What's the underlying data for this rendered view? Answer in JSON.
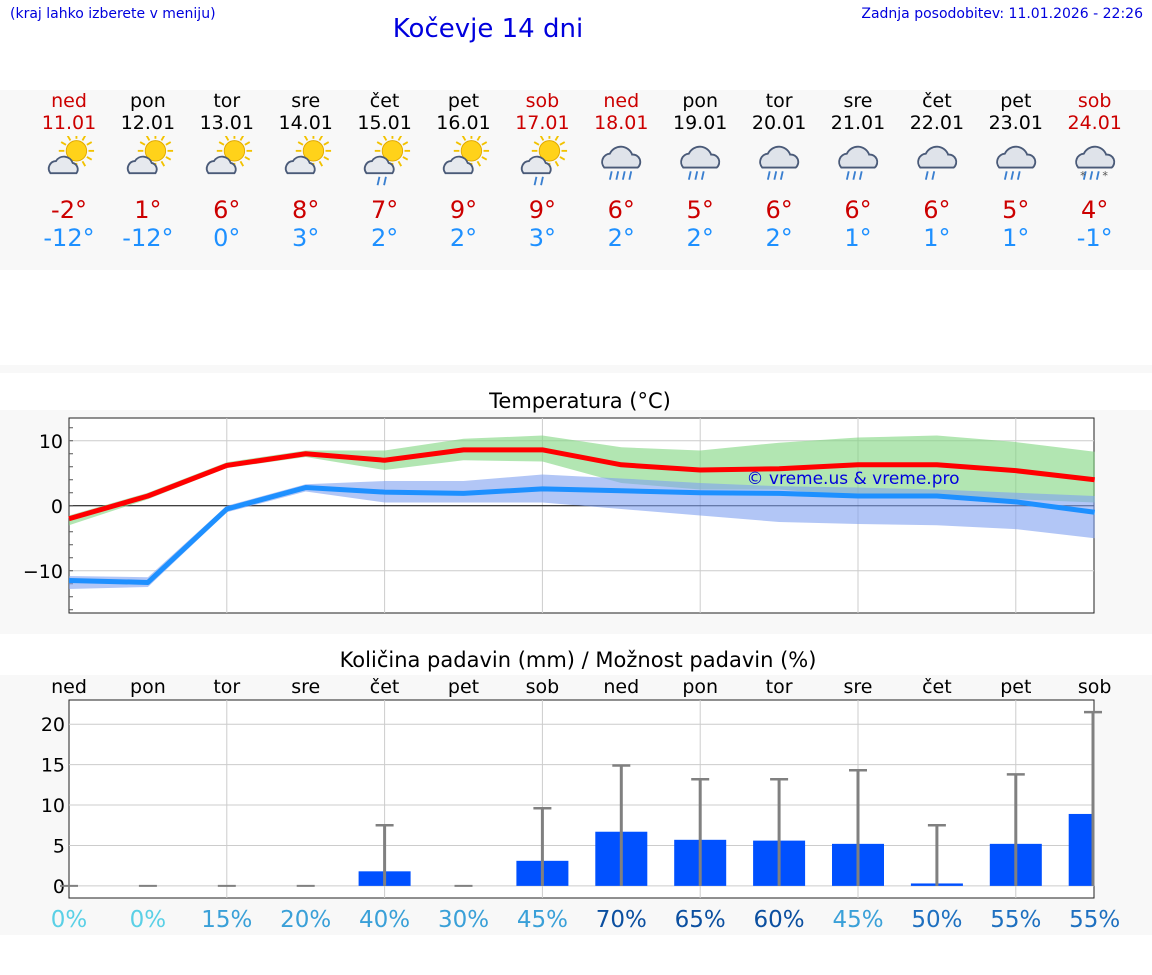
{
  "header": {
    "hint": "(kraj lahko izberete v meniju)",
    "title": "Kočevje 14 dni",
    "updated": "Zadnja posodobitev: 11.01.2026 - 22:26"
  },
  "days": [
    {
      "name": "ned",
      "date": "11.01",
      "weekend": true,
      "icon": "sun-cloud-icon",
      "max": "-2°",
      "min": "-12°"
    },
    {
      "name": "pon",
      "date": "12.01",
      "weekend": false,
      "icon": "sun-cloud-icon",
      "max": "1°",
      "min": "-12°"
    },
    {
      "name": "tor",
      "date": "13.01",
      "weekend": false,
      "icon": "sun-cloud-icon",
      "max": "6°",
      "min": "0°"
    },
    {
      "name": "sre",
      "date": "14.01",
      "weekend": false,
      "icon": "sun-cloud-icon",
      "max": "8°",
      "min": "3°"
    },
    {
      "name": "čet",
      "date": "15.01",
      "weekend": false,
      "icon": "sun-cloud-rain-icon",
      "max": "7°",
      "min": "2°"
    },
    {
      "name": "pet",
      "date": "16.01",
      "weekend": false,
      "icon": "sun-cloud-icon",
      "max": "9°",
      "min": "2°"
    },
    {
      "name": "sob",
      "date": "17.01",
      "weekend": true,
      "icon": "sun-cloud-rain-icon",
      "max": "9°",
      "min": "3°"
    },
    {
      "name": "ned",
      "date": "18.01",
      "weekend": true,
      "icon": "cloud-heavy-rain-icon",
      "max": "6°",
      "min": "2°"
    },
    {
      "name": "pon",
      "date": "19.01",
      "weekend": false,
      "icon": "cloud-rain-icon",
      "max": "5°",
      "min": "2°"
    },
    {
      "name": "tor",
      "date": "20.01",
      "weekend": false,
      "icon": "cloud-rain-icon",
      "max": "6°",
      "min": "2°"
    },
    {
      "name": "sre",
      "date": "21.01",
      "weekend": false,
      "icon": "cloud-rain-icon",
      "max": "6°",
      "min": "1°"
    },
    {
      "name": "čet",
      "date": "22.01",
      "weekend": false,
      "icon": "cloud-light-rain-icon",
      "max": "6°",
      "min": "1°"
    },
    {
      "name": "pet",
      "date": "23.01",
      "weekend": false,
      "icon": "cloud-rain-icon",
      "max": "5°",
      "min": "1°"
    },
    {
      "name": "sob",
      "date": "24.01",
      "weekend": true,
      "icon": "cloud-rain-snow-icon",
      "max": "4°",
      "min": "-1°"
    }
  ],
  "colors": {
    "max_line": "#ff0000",
    "max_band": "#7fd67f",
    "min_line": "#1e90ff",
    "min_band": "#7fa0f0",
    "bar": "#0050ff",
    "whisker": "#808080",
    "watermark": "#0000dd"
  },
  "chart_data": [
    {
      "type": "line",
      "title": "Temperatura (°C)",
      "watermark": "© vreme.us & vreme.pro",
      "ylim": [
        -16.5,
        13.5
      ],
      "yticks": [
        10,
        0,
        -10
      ],
      "ytick_labels": [
        "10",
        "0",
        "−10"
      ],
      "x": [
        0,
        1,
        2,
        3,
        4,
        5,
        6,
        7,
        8,
        9,
        10,
        11,
        12,
        13
      ],
      "series": [
        {
          "name": "max",
          "values": [
            -2,
            1.5,
            6.2,
            8,
            7,
            8.6,
            8.6,
            6.3,
            5.5,
            5.7,
            6.3,
            6.3,
            5.4,
            4.0
          ],
          "band_low": [
            -3,
            1.0,
            5.8,
            7.5,
            5.5,
            7,
            6.8,
            3.5,
            2.5,
            2.5,
            1.5,
            1.5,
            1.0,
            0.5
          ],
          "band_high": [
            -1.5,
            2.0,
            6.7,
            8.5,
            8.5,
            10.3,
            10.8,
            9.0,
            8.5,
            9.7,
            10.5,
            10.8,
            9.8,
            8.3
          ]
        },
        {
          "name": "min",
          "values": [
            -11.5,
            -11.8,
            -0.5,
            2.8,
            2.1,
            1.9,
            2.6,
            2.3,
            2.0,
            1.9,
            1.5,
            1.5,
            0.6,
            -1.0
          ],
          "band_low": [
            -12.8,
            -12.5,
            -1.0,
            2.2,
            0.5,
            0.5,
            0.5,
            -0.5,
            -1.5,
            -2.5,
            -2.8,
            -3.0,
            -3.6,
            -5.0
          ],
          "band_high": [
            -10.8,
            -11.0,
            0.0,
            3.3,
            3.8,
            3.8,
            4.8,
            4.2,
            3.5,
            3.0,
            2.8,
            2.5,
            2.0,
            1.5
          ]
        }
      ]
    },
    {
      "type": "bar",
      "title": "Količina padavin (mm) / Možnost padavin (%)",
      "categories": [
        "ned",
        "pon",
        "tor",
        "sre",
        "čet",
        "pet",
        "sob",
        "ned",
        "pon",
        "tor",
        "sre",
        "čet",
        "pet",
        "sob"
      ],
      "ylim": [
        -1.5,
        23
      ],
      "yticks": [
        20,
        15,
        10,
        5,
        0
      ],
      "values": [
        0,
        0,
        0,
        0,
        1.8,
        0,
        3.1,
        6.7,
        5.7,
        5.6,
        5.2,
        0.3,
        5.2,
        8.9
      ],
      "error_high": [
        0,
        0,
        0,
        0,
        7.5,
        0,
        9.6,
        14.9,
        13.2,
        13.2,
        14.3,
        7.5,
        13.8,
        21.5
      ],
      "probability": [
        "0%",
        "0%",
        "15%",
        "20%",
        "40%",
        "30%",
        "45%",
        "70%",
        "65%",
        "60%",
        "45%",
        "50%",
        "55%",
        "55%"
      ],
      "probability_values": [
        0,
        0,
        15,
        20,
        40,
        30,
        45,
        70,
        65,
        60,
        45,
        50,
        55,
        55
      ]
    }
  ]
}
